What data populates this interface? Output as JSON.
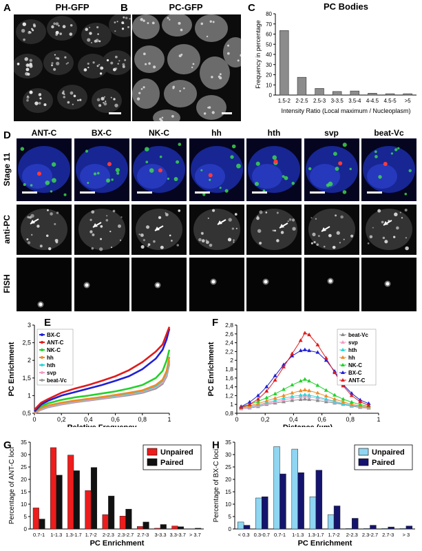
{
  "panels": {
    "A": {
      "letter": "A",
      "title": "PH-GFP"
    },
    "B": {
      "letter": "B",
      "title": "PC-GFP"
    },
    "C": {
      "letter": "C"
    },
    "D": {
      "letter": "D"
    },
    "E": {
      "letter": "E"
    },
    "F": {
      "letter": "F"
    },
    "G": {
      "letter": "G"
    },
    "H": {
      "letter": "H"
    }
  },
  "panelD": {
    "columns": [
      "ANT-C",
      "BX-C",
      "NK-C",
      "hh",
      "hth",
      "svp",
      "beat-Vc"
    ],
    "rows": [
      "Stage 11",
      "anti-PC",
      "FISH"
    ]
  },
  "chart_data": [
    {
      "id": "C",
      "type": "bar",
      "title": "PC Bodies",
      "xlabel": "Intensity Ratio (Local maximum / Nucleoplasm)",
      "ylabel": "Frequency in percentage",
      "categories": [
        "1.5-2",
        "2-2.5",
        "2.5-3",
        "3-3.5",
        "3.5-4",
        "4-4.5",
        "4.5-5",
        ">5"
      ],
      "values": [
        63.5,
        17.5,
        6.5,
        3.5,
        4,
        1.8,
        1.3,
        1.3
      ],
      "ylim": [
        0,
        80
      ],
      "yticks": [
        0,
        10,
        20,
        30,
        40,
        50,
        60,
        70,
        80
      ],
      "color": "#8c8c8c"
    },
    {
      "id": "E",
      "type": "line",
      "xlabel": "Relative Frequency",
      "ylabel": "PC Enrichment",
      "xlim": [
        0,
        1
      ],
      "ylim": [
        0.5,
        3
      ],
      "xticks": [
        "0",
        "0,2",
        "0,4",
        "0,6",
        "0,8",
        "1"
      ],
      "yticks": [
        "0,5",
        "1",
        "1,5",
        "2",
        "2,5",
        "3"
      ],
      "legend_position": "top-left",
      "series": [
        {
          "name": "BX-C",
          "color": "#1f1fd6",
          "x": [
            0,
            0.05,
            0.1,
            0.2,
            0.3,
            0.4,
            0.5,
            0.6,
            0.7,
            0.8,
            0.9,
            0.95,
            0.98,
            1
          ],
          "y": [
            0.55,
            0.75,
            0.85,
            1.0,
            1.1,
            1.2,
            1.3,
            1.42,
            1.55,
            1.75,
            2.05,
            2.3,
            2.6,
            2.9
          ]
        },
        {
          "name": "ANT-C",
          "color": "#e01b1b",
          "x": [
            0,
            0.05,
            0.1,
            0.2,
            0.3,
            0.4,
            0.5,
            0.6,
            0.7,
            0.8,
            0.9,
            0.95,
            0.98,
            1
          ],
          "y": [
            0.6,
            0.8,
            0.9,
            1.08,
            1.2,
            1.3,
            1.42,
            1.55,
            1.72,
            1.95,
            2.25,
            2.45,
            2.75,
            2.95
          ]
        },
        {
          "name": "NK-C",
          "color": "#22d12b",
          "x": [
            0,
            0.05,
            0.1,
            0.2,
            0.3,
            0.4,
            0.5,
            0.6,
            0.7,
            0.8,
            0.9,
            0.95,
            0.98,
            1
          ],
          "y": [
            0.55,
            0.7,
            0.78,
            0.88,
            0.95,
            1.0,
            1.06,
            1.12,
            1.2,
            1.3,
            1.5,
            1.7,
            2.0,
            2.3
          ]
        },
        {
          "name": "hh",
          "color": "#f08a24",
          "x": [
            0,
            0.05,
            0.1,
            0.2,
            0.3,
            0.4,
            0.5,
            0.6,
            0.7,
            0.8,
            0.9,
            0.95,
            0.98,
            1
          ],
          "y": [
            0.52,
            0.65,
            0.72,
            0.8,
            0.86,
            0.91,
            0.96,
            1.02,
            1.08,
            1.15,
            1.3,
            1.45,
            1.7,
            2.1
          ]
        },
        {
          "name": "hth",
          "color": "#2fd6d6",
          "x": [
            0,
            0.05,
            0.1,
            0.2,
            0.3,
            0.4,
            0.5,
            0.6,
            0.7,
            0.8,
            0.9,
            0.95,
            0.98,
            1
          ],
          "y": [
            0.52,
            0.64,
            0.71,
            0.79,
            0.85,
            0.9,
            0.95,
            1.0,
            1.06,
            1.13,
            1.27,
            1.42,
            1.65,
            2.0
          ]
        },
        {
          "name": "svp",
          "color": "#f59bc8",
          "x": [
            0,
            0.05,
            0.1,
            0.2,
            0.3,
            0.4,
            0.5,
            0.6,
            0.7,
            0.8,
            0.9,
            0.95,
            0.98,
            1
          ],
          "y": [
            0.5,
            0.62,
            0.69,
            0.77,
            0.83,
            0.88,
            0.93,
            0.98,
            1.04,
            1.11,
            1.24,
            1.38,
            1.6,
            1.95
          ]
        },
        {
          "name": "beat-Vc",
          "color": "#9a9a9a",
          "x": [
            0,
            0.05,
            0.1,
            0.2,
            0.3,
            0.4,
            0.5,
            0.6,
            0.7,
            0.8,
            0.9,
            0.95,
            0.98,
            1
          ],
          "y": [
            0.5,
            0.6,
            0.67,
            0.75,
            0.81,
            0.86,
            0.91,
            0.96,
            1.01,
            1.08,
            1.2,
            1.33,
            1.55,
            1.9
          ]
        }
      ]
    },
    {
      "id": "F",
      "type": "line",
      "xlabel": "Distance (µm)",
      "ylabel": "PC Enrichment",
      "xlim": [
        0,
        1
      ],
      "ylim": [
        0.8,
        2.8
      ],
      "xticks": [
        "0",
        "0,2",
        "0,4",
        "0,6",
        "0,8",
        "1"
      ],
      "yticks": [
        "0,8",
        "1",
        "1,2",
        "1,4",
        "1,6",
        "1,8",
        "2",
        "2,2",
        "2,4",
        "2,6",
        "2,8"
      ],
      "legend_position": "top-right",
      "x": [
        0.03,
        0.09,
        0.15,
        0.21,
        0.27,
        0.33,
        0.39,
        0.45,
        0.48,
        0.51,
        0.57,
        0.63,
        0.69,
        0.75,
        0.81,
        0.87,
        0.93
      ],
      "series": [
        {
          "name": "beat-Vc",
          "color": "#8a8a8a",
          "marker": "triangle",
          "y": [
            0.9,
            0.92,
            0.95,
            1.0,
            1.03,
            1.06,
            1.09,
            1.11,
            1.12,
            1.11,
            1.09,
            1.06,
            1.03,
            1.0,
            0.96,
            0.93,
            0.91
          ]
        },
        {
          "name": "svp",
          "color": "#f59bc8",
          "marker": "triangle",
          "y": [
            0.9,
            0.93,
            0.97,
            1.02,
            1.06,
            1.1,
            1.14,
            1.17,
            1.18,
            1.17,
            1.14,
            1.1,
            1.05,
            1.01,
            0.97,
            0.94,
            0.91
          ]
        },
        {
          "name": "hth",
          "color": "#2fd6d6",
          "marker": "triangle",
          "y": [
            0.92,
            0.95,
            0.99,
            1.04,
            1.09,
            1.14,
            1.18,
            1.21,
            1.22,
            1.21,
            1.17,
            1.12,
            1.07,
            1.02,
            0.98,
            0.95,
            0.93
          ]
        },
        {
          "name": "hh",
          "color": "#f08a24",
          "marker": "triangle",
          "y": [
            0.93,
            0.97,
            1.02,
            1.08,
            1.14,
            1.2,
            1.26,
            1.31,
            1.33,
            1.31,
            1.26,
            1.19,
            1.12,
            1.06,
            1.0,
            0.97,
            0.94
          ]
        },
        {
          "name": "NK-C",
          "color": "#22d12b",
          "marker": "triangle",
          "y": [
            0.95,
            1.0,
            1.07,
            1.15,
            1.24,
            1.34,
            1.44,
            1.53,
            1.57,
            1.53,
            1.43,
            1.32,
            1.21,
            1.12,
            1.05,
            1.0,
            0.96
          ]
        },
        {
          "name": "BX-C",
          "color": "#1f1fd6",
          "marker": "triangle",
          "y": [
            0.95,
            1.05,
            1.2,
            1.4,
            1.65,
            1.9,
            2.1,
            2.22,
            2.24,
            2.22,
            2.18,
            2.0,
            1.75,
            1.45,
            1.25,
            1.1,
            1.02
          ]
        },
        {
          "name": "ANT-C",
          "color": "#e01b1b",
          "marker": "triangle",
          "y": [
            0.93,
            1.0,
            1.12,
            1.3,
            1.55,
            1.85,
            2.15,
            2.45,
            2.62,
            2.58,
            2.35,
            2.05,
            1.72,
            1.42,
            1.2,
            1.06,
            0.98
          ]
        }
      ]
    },
    {
      "id": "G",
      "type": "bar",
      "xlabel": "PC Enrichment",
      "ylabel": "Percentage of ANT-C loci",
      "ylim": [
        0,
        35
      ],
      "yticks": [
        0,
        5,
        10,
        15,
        20,
        25,
        30,
        35
      ],
      "legend_position": "top-right",
      "categories": [
        "0.7-1",
        "1-1.3",
        "1.3-1.7",
        "1.7-2",
        "2-2.3",
        "2.3-2.7",
        "2.7-3",
        "3-3.3",
        "3.3-3.7",
        "> 3.7"
      ],
      "series": [
        {
          "name": "Unpaired",
          "color": "#ee1c1c",
          "values": [
            8.5,
            32.8,
            29.8,
            15.5,
            5.8,
            5.2,
            1.0,
            0.3,
            1.2,
            0
          ]
        },
        {
          "name": "Paired",
          "color": "#111111",
          "values": [
            4,
            21.7,
            23.5,
            24.8,
            13.3,
            8.0,
            2.8,
            1.8,
            0.9,
            0.3
          ]
        }
      ]
    },
    {
      "id": "H",
      "type": "bar",
      "xlabel": "PC Enrichment",
      "ylabel": "Percentage of BX-C loci",
      "ylim": [
        0,
        35
      ],
      "yticks": [
        0,
        5,
        10,
        15,
        20,
        25,
        30,
        35
      ],
      "legend_position": "top-right",
      "categories": [
        "< 0.3",
        "0.3-0.7",
        "0.7-1",
        "1-1.3",
        "1.3-1.7",
        "1.7-2",
        "2-2.3",
        "2.3-2.7",
        "2.7-3",
        "> 3"
      ],
      "series": [
        {
          "name": "Unpaired",
          "color": "#8fd6f2",
          "values": [
            2.8,
            12.5,
            33.2,
            32.2,
            13.0,
            5.8,
            0.2,
            0.2,
            0.2,
            0.2
          ]
        },
        {
          "name": "Paired",
          "color": "#14146e",
          "values": [
            1.5,
            13.0,
            22.2,
            22.7,
            23.7,
            9.3,
            4.3,
            1.5,
            0.8,
            1.2
          ]
        }
      ]
    }
  ]
}
